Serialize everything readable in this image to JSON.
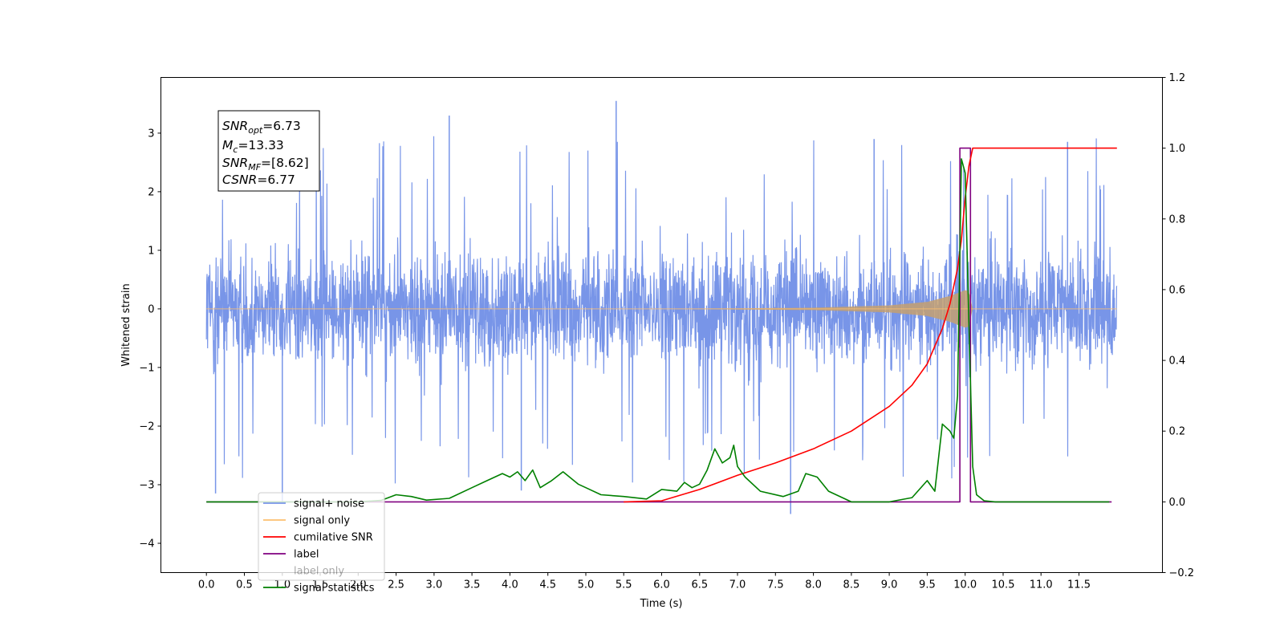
{
  "chart_data": {
    "type": "line",
    "title": "",
    "xlabel": "Time (s)",
    "ylabel": "Whitened strain",
    "xlim": [
      -0.6,
      12.6
    ],
    "ylim": [
      -4.5,
      3.95
    ],
    "ylim_right": [
      -0.2,
      1.2
    ],
    "x_ticks": [
      "0.0",
      "0.5",
      "1.0",
      "1.5",
      "2.0",
      "2.5",
      "3.0",
      "3.5",
      "4.0",
      "4.5",
      "5.0",
      "5.5",
      "6.0",
      "6.5",
      "7.0",
      "7.5",
      "8.0",
      "8.5",
      "9.0",
      "9.5",
      "10.0",
      "10.5",
      "11.0",
      "11.5"
    ],
    "y_ticks": [
      "3",
      "2",
      "1",
      "0",
      "−1",
      "−2",
      "−3",
      "−4"
    ],
    "y_ticks_right": [
      "1.2",
      "1.0",
      "0.8",
      "0.6",
      "0.4",
      "0.2",
      "0.0",
      "−0.2"
    ],
    "grid": false,
    "legend_position": "lower-left",
    "annotation": {
      "snr_opt": {
        "base": "SNR",
        "sub": "opt",
        "value": "=6.73"
      },
      "mc": {
        "base": "M",
        "sub": "c",
        "value": "=13.33"
      },
      "snr_mf": {
        "base": "SNR",
        "sub": "MF",
        "value": "=[8.62]"
      },
      "csnr": {
        "base": "CSNR",
        "sub": "",
        "value": "=6.77"
      }
    },
    "series": [
      {
        "name": "signal+ noise",
        "color": "#7895e8",
        "axis": "left",
        "x_range": [
          0.0,
          12.0
        ],
        "amplitude_typical": 1.4,
        "amplitude_peak": 3.55
      },
      {
        "name": "signal only",
        "color": "#fdbf6f",
        "axis": "left",
        "x": [
          0.0,
          6.0,
          8.0,
          9.0,
          9.5,
          9.8,
          10.0,
          10.05,
          10.1,
          12.0
        ],
        "envelope": [
          0.0,
          0.0,
          0.02,
          0.06,
          0.12,
          0.22,
          0.32,
          0.3,
          0.0,
          0.0
        ]
      },
      {
        "name": "cumilative SNR",
        "color": "#ff0000",
        "axis": "right",
        "x": [
          5.5,
          6.0,
          6.5,
          7.0,
          7.5,
          8.0,
          8.5,
          9.0,
          9.3,
          9.5,
          9.7,
          9.8,
          9.9,
          9.95,
          10.0,
          10.05,
          10.1,
          12.0
        ],
        "y": [
          0.0,
          0.003,
          0.035,
          0.075,
          0.11,
          0.15,
          0.2,
          0.27,
          0.33,
          0.39,
          0.49,
          0.56,
          0.66,
          0.74,
          0.86,
          0.95,
          1.0,
          1.0
        ]
      },
      {
        "name": "label",
        "color": "#800080",
        "axis": "right",
        "x": [
          0.0,
          9.93,
          9.93,
          10.07,
          10.07,
          11.93
        ],
        "y": [
          0.0,
          0.0,
          1.0,
          1.0,
          0.0,
          0.0
        ]
      },
      {
        "name": "label only",
        "color": "#800080",
        "axis": "right"
      },
      {
        "name": "signal statistics",
        "color": "#008000",
        "axis": "right",
        "x": [
          0.0,
          2.0,
          2.3,
          2.5,
          2.7,
          2.9,
          3.2,
          3.5,
          3.7,
          3.9,
          4.0,
          4.1,
          4.2,
          4.3,
          4.4,
          4.55,
          4.7,
          4.9,
          5.0,
          5.2,
          5.5,
          5.8,
          6.0,
          6.2,
          6.3,
          6.4,
          6.5,
          6.6,
          6.7,
          6.8,
          6.9,
          6.95,
          7.0,
          7.1,
          7.3,
          7.6,
          7.8,
          7.9,
          8.05,
          8.2,
          8.5,
          9.0,
          9.3,
          9.5,
          9.6,
          9.7,
          9.8,
          9.85,
          9.9,
          9.95,
          10.0,
          10.05,
          10.1,
          10.15,
          10.25,
          10.4,
          11.9
        ],
        "y": [
          0.0,
          0.0,
          0.004,
          0.02,
          0.015,
          0.005,
          0.01,
          0.04,
          0.06,
          0.08,
          0.07,
          0.085,
          0.06,
          0.09,
          0.04,
          0.06,
          0.085,
          0.05,
          0.04,
          0.02,
          0.015,
          0.008,
          0.035,
          0.03,
          0.055,
          0.04,
          0.05,
          0.09,
          0.15,
          0.11,
          0.125,
          0.16,
          0.1,
          0.07,
          0.03,
          0.015,
          0.03,
          0.08,
          0.07,
          0.03,
          0.0,
          0.0,
          0.012,
          0.06,
          0.03,
          0.22,
          0.2,
          0.18,
          0.3,
          0.97,
          0.93,
          0.5,
          0.1,
          0.02,
          0.003,
          0.0,
          0.0
        ]
      }
    ]
  }
}
